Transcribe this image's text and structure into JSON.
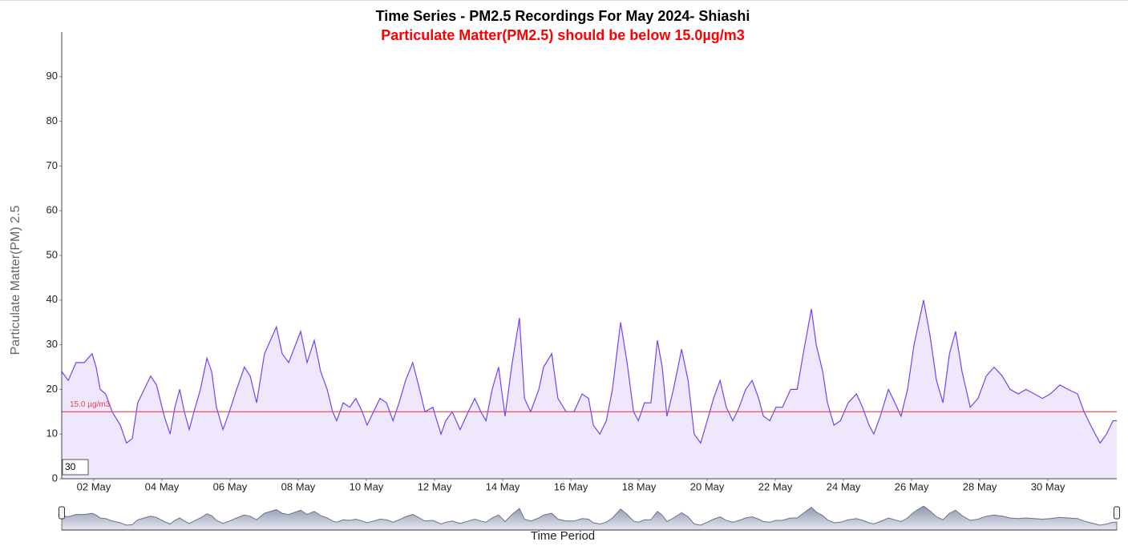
{
  "chart_data": {
    "type": "area",
    "title": "Time Series - PM2.5 Recordings For May 2024- Shiashi",
    "subtitle": "Particulate Matter(PM2.5) should be below 15.0µg/m3",
    "y_label": "Particulate Matter(PM) 2.5",
    "x_label": "Time Period",
    "range_input": "30",
    "threshold": {
      "value": 15,
      "label": "15.0 µg/m3"
    },
    "color": "#7443ef",
    "x": [
      1.06,
      1.25,
      1.48,
      1.72,
      1.95,
      2.07,
      2.19,
      2.35,
      2.54,
      2.78,
      2.96,
      3.13,
      3.29,
      3.48,
      3.67,
      3.84,
      4.07,
      4.24,
      4.38,
      4.52,
      4.66,
      4.8,
      4.94,
      5.13,
      5.32,
      5.46,
      5.6,
      5.79,
      5.98,
      6.19,
      6.42,
      6.59,
      6.78,
      7.01,
      7.36,
      7.53,
      7.72,
      8.07,
      8.26,
      8.47,
      8.66,
      8.85,
      9.01,
      9.13,
      9.32,
      9.51,
      9.69,
      9.88,
      10.02,
      10.21,
      10.4,
      10.59,
      10.78,
      10.96,
      11.15,
      11.36,
      11.53,
      11.72,
      11.95,
      12.19,
      12.33,
      12.52,
      12.75,
      12.99,
      13.18,
      13.36,
      13.51,
      13.69,
      13.88,
      14.07,
      14.26,
      14.49,
      14.64,
      14.82,
      15.06,
      15.2,
      15.44,
      15.62,
      15.86,
      16.09,
      16.33,
      16.52,
      16.66,
      16.85,
      17.04,
      17.22,
      17.46,
      17.65,
      17.84,
      17.98,
      18.16,
      18.35,
      18.54,
      18.68,
      18.82,
      19.01,
      19.25,
      19.44,
      19.62,
      19.81,
      20.0,
      20.19,
      20.38,
      20.56,
      20.75,
      20.94,
      21.13,
      21.32,
      21.51,
      21.65,
      21.84,
      22.02,
      22.21,
      22.45,
      22.64,
      22.82,
      23.06,
      23.2,
      23.39,
      23.53,
      23.72,
      23.91,
      24.14,
      24.38,
      24.56,
      24.75,
      24.89,
      25.08,
      25.32,
      25.51,
      25.69,
      25.88,
      26.07,
      26.35,
      26.54,
      26.73,
      26.92,
      27.11,
      27.29,
      27.48,
      27.72,
      27.95,
      28.19,
      28.42,
      28.66,
      28.89,
      29.13,
      29.36,
      29.6,
      29.84,
      30.07,
      30.35,
      30.59,
      30.87,
      31.06,
      31.25,
      31.39,
      31.53,
      31.72,
      31.91,
      32.02
    ],
    "values": [
      24,
      22,
      26,
      26,
      28,
      25,
      20,
      19,
      15,
      12,
      8,
      9,
      17,
      20,
      23,
      21,
      14,
      10,
      16,
      20,
      15,
      11,
      15,
      20,
      27,
      24,
      16,
      11,
      15,
      20,
      25,
      23,
      17,
      28,
      34,
      28,
      26,
      33,
      26,
      31,
      24,
      20,
      15,
      13,
      17,
      16,
      18,
      15,
      12,
      15,
      18,
      17,
      13,
      17,
      22,
      26,
      21,
      15,
      16,
      10,
      13,
      15,
      11,
      15,
      18,
      15,
      13,
      20,
      25,
      14,
      25,
      36,
      18,
      15,
      20,
      25,
      28,
      18,
      15,
      15,
      19,
      18,
      12,
      10,
      13,
      20,
      35,
      26,
      15,
      13,
      17,
      17,
      31,
      25,
      14,
      20,
      29,
      22,
      10,
      8,
      13,
      18,
      22,
      16,
      13,
      16,
      20,
      22,
      18,
      14,
      13,
      16,
      16,
      20,
      20,
      28,
      38,
      30,
      24,
      17,
      12,
      13,
      17,
      19,
      16,
      12,
      10,
      14,
      20,
      17,
      14,
      20,
      30,
      40,
      32,
      22,
      17,
      28,
      33,
      24,
      16,
      18,
      23,
      25,
      23,
      20,
      19,
      20,
      19,
      18,
      19,
      21,
      20,
      19,
      15,
      12,
      10,
      8,
      10,
      13,
      13
    ],
    "xlim": [
      1.06,
      32.02
    ],
    "xticks": [
      {
        "value": 2,
        "label": "02 May"
      },
      {
        "value": 4,
        "label": "04 May"
      },
      {
        "value": 6,
        "label": "06 May"
      },
      {
        "value": 8,
        "label": "08 May"
      },
      {
        "value": 10,
        "label": "10 May"
      },
      {
        "value": 12,
        "label": "12 May"
      },
      {
        "value": 14,
        "label": "14 May"
      },
      {
        "value": 16,
        "label": "16 May"
      },
      {
        "value": 18,
        "label": "18 May"
      },
      {
        "value": 20,
        "label": "20 May"
      },
      {
        "value": 22,
        "label": "22 May"
      },
      {
        "value": 24,
        "label": "24 May"
      },
      {
        "value": 26,
        "label": "26 May"
      },
      {
        "value": 28,
        "label": "28 May"
      },
      {
        "value": 30,
        "label": "30 May"
      }
    ],
    "ylim": [
      0,
      100
    ],
    "yticks": [
      0,
      10,
      20,
      30,
      40,
      50,
      60,
      70,
      80,
      90
    ]
  }
}
